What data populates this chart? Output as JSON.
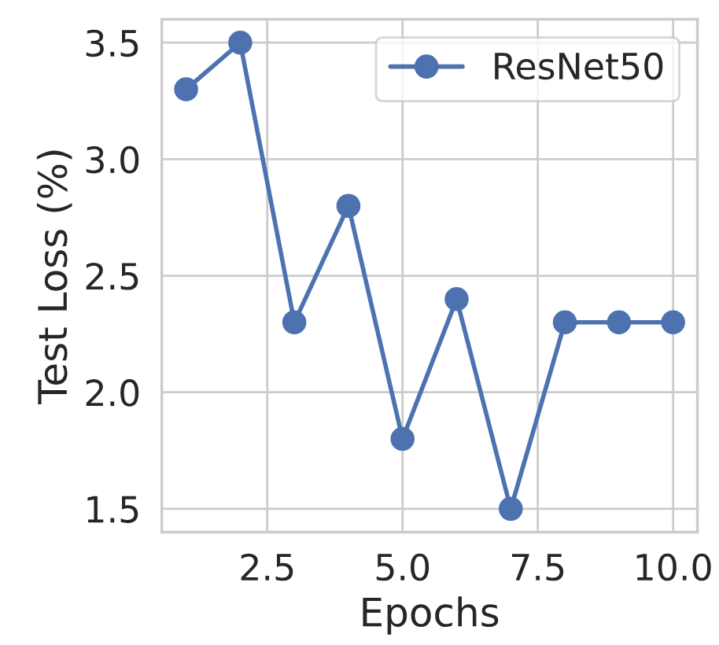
{
  "chart_data": {
    "type": "line",
    "xlabel": "Epochs",
    "ylabel": "Test Loss (%)",
    "x": [
      1,
      2,
      3,
      4,
      5,
      6,
      7,
      8,
      9,
      10
    ],
    "series": [
      {
        "name": "ResNet50",
        "color": "#4c72b0",
        "values": [
          3.3,
          3.5,
          2.3,
          2.8,
          1.8,
          2.4,
          1.5,
          2.3,
          2.3,
          2.3
        ]
      }
    ],
    "xlim": [
      0.55,
      10.45
    ],
    "ylim": [
      1.4,
      3.6
    ],
    "xticks": [
      {
        "value": 2.5,
        "label": "2.5"
      },
      {
        "value": 5,
        "label": "5.0"
      },
      {
        "value": 7.5,
        "label": "7.5"
      },
      {
        "value": 10,
        "label": "10.0"
      }
    ],
    "yticks": [
      {
        "value": 1.5,
        "label": "1.5"
      },
      {
        "value": 2,
        "label": "2.0"
      },
      {
        "value": 2.5,
        "label": "2.5"
      },
      {
        "value": 3,
        "label": "3.0"
      },
      {
        "value": 3.5,
        "label": "3.5"
      }
    ],
    "grid": true,
    "legend": "upper right",
    "marker": "circle",
    "line_style": "solid"
  }
}
